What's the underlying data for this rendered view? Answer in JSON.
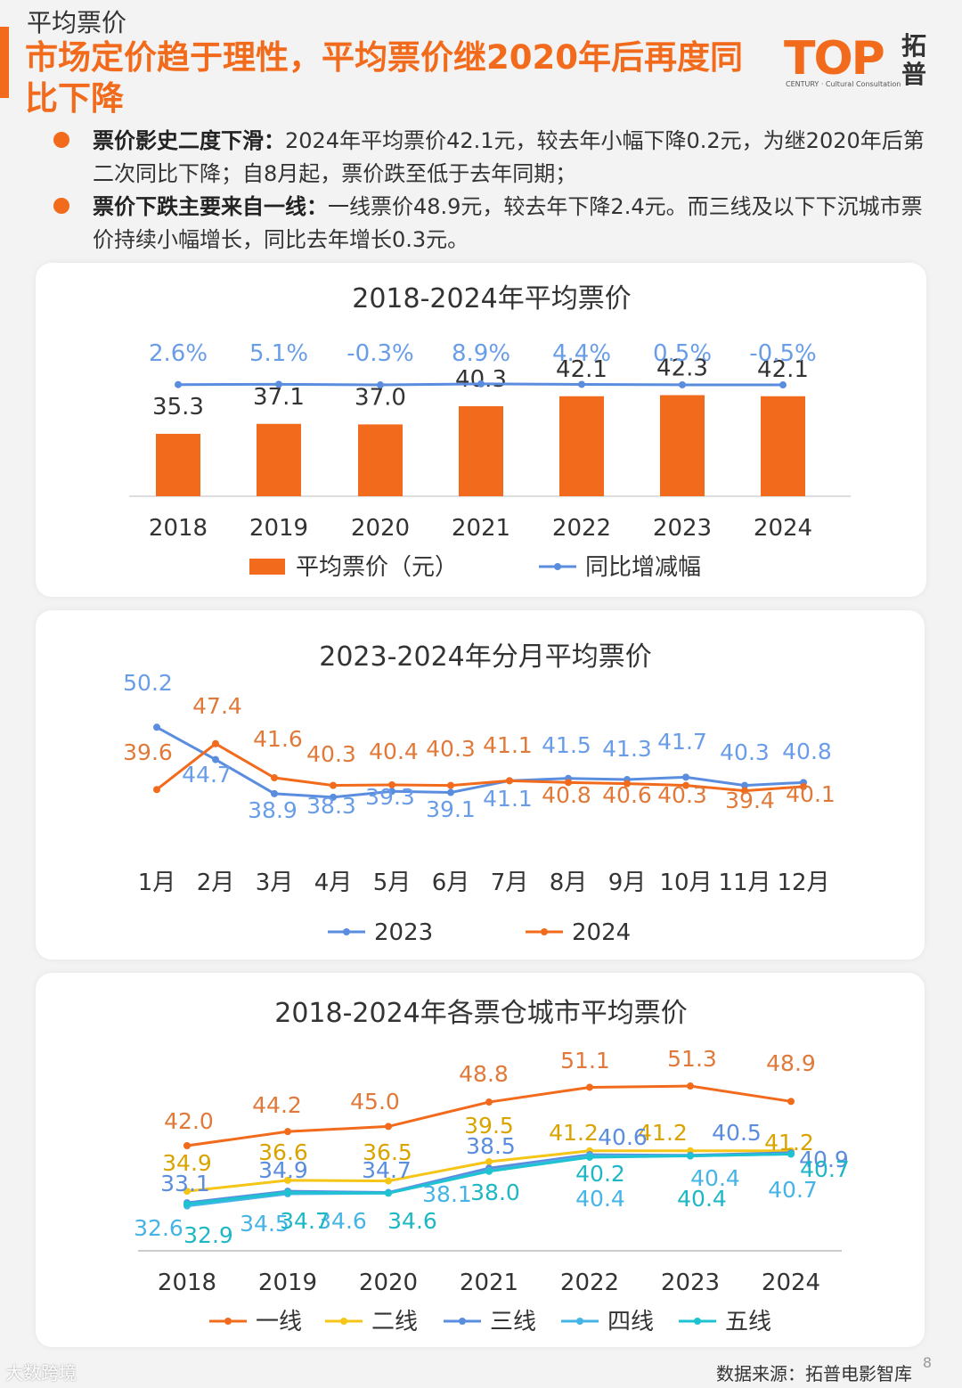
{
  "header": {
    "section": "平均票价",
    "headline": "市场定价趋于理性，平均票价继2020年后再度同比下降"
  },
  "logo": {
    "mark": "TOP",
    "name": "拓普",
    "sub": "CENTURY · Cultural Consultation"
  },
  "bullets": [
    {
      "bold": "票价影史二度下滑：",
      "text": "2024年平均票价42.1元，较去年小幅下降0.2元，为继2020年后第二次同比下降；自8月起，票价跌至低于去年同期；"
    },
    {
      "bold": "票价下跌主要来自一线：",
      "text": "一线票价48.9元，较去年下降2.4元。而三线及以下下沉城市票价持续小幅增长，同比去年增长0.3元。"
    }
  ],
  "colors": {
    "accent": "#f26b1d",
    "blue": "#5b8ddf",
    "yellow": "#f5c518",
    "lightblue": "#46b4e6",
    "cyan": "#1ec3d2"
  },
  "chart_data": [
    {
      "type": "bar",
      "title": "2018-2024年平均票价",
      "categories": [
        "2018",
        "2019",
        "2020",
        "2021",
        "2022",
        "2023",
        "2024"
      ],
      "series": [
        {
          "name": "平均票价（元）",
          "kind": "bar",
          "values": [
            35.3,
            37.1,
            37.0,
            40.3,
            42.1,
            42.3,
            42.1
          ],
          "labels": [
            "35.3",
            "37.1",
            "37.0",
            "40.3",
            "42.1",
            "42.3",
            "42.1"
          ]
        },
        {
          "name": "同比增减幅",
          "kind": "line",
          "values": [
            2.6,
            5.1,
            -0.3,
            8.9,
            4.4,
            0.5,
            -0.5
          ],
          "labels": [
            "2.6%",
            "5.1%",
            "-0.3%",
            "8.9%",
            "4.4%",
            "0.5%",
            "-0.5%"
          ]
        }
      ],
      "legend": "bottom"
    },
    {
      "type": "line",
      "title": "2023-2024年分月平均票价",
      "categories": [
        "1月",
        "2月",
        "3月",
        "4月",
        "5月",
        "6月",
        "7月",
        "8月",
        "9月",
        "10月",
        "11月",
        "12月"
      ],
      "series": [
        {
          "name": "2023",
          "values": [
            50.2,
            44.7,
            38.9,
            38.3,
            39.3,
            39.1,
            41.1,
            41.5,
            41.3,
            41.7,
            40.3,
            40.8
          ]
        },
        {
          "name": "2024",
          "values": [
            39.6,
            47.4,
            41.6,
            40.3,
            40.4,
            40.3,
            41.1,
            40.8,
            40.6,
            40.3,
            39.4,
            40.1
          ]
        }
      ],
      "legend": "bottom"
    },
    {
      "type": "line",
      "title": "2018-2024年各票仓城市平均票价",
      "categories": [
        "2018",
        "2019",
        "2020",
        "2021",
        "2022",
        "2023",
        "2024"
      ],
      "series": [
        {
          "name": "一线",
          "values": [
            42.0,
            44.2,
            45.0,
            48.8,
            51.1,
            51.3,
            48.9
          ]
        },
        {
          "name": "二线",
          "values": [
            34.9,
            36.6,
            36.5,
            39.5,
            41.2,
            41.2,
            41.2
          ]
        },
        {
          "name": "三线",
          "values": [
            33.1,
            34.9,
            34.7,
            38.5,
            40.6,
            40.5,
            40.9
          ]
        },
        {
          "name": "四线",
          "values": [
            32.6,
            34.5,
            34.6,
            38.1,
            40.4,
            40.4,
            40.7
          ]
        },
        {
          "name": "五线",
          "values": [
            32.9,
            34.7,
            34.6,
            38.0,
            40.2,
            40.4,
            40.7
          ]
        }
      ],
      "legend": "bottom"
    }
  ],
  "footer": {
    "source": "数据来源：拓普电影智库",
    "page": "8",
    "watermark": "大数跨境"
  }
}
